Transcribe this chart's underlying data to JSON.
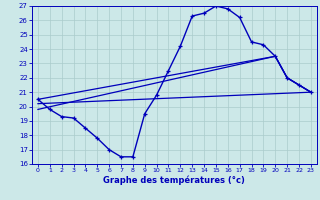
{
  "xlabel": "Graphe des températures (°c)",
  "xlim": [
    -0.5,
    23.5
  ],
  "ylim": [
    16,
    27
  ],
  "yticks": [
    16,
    17,
    18,
    19,
    20,
    21,
    22,
    23,
    24,
    25,
    26,
    27
  ],
  "xticks": [
    0,
    1,
    2,
    3,
    4,
    5,
    6,
    7,
    8,
    9,
    10,
    11,
    12,
    13,
    14,
    15,
    16,
    17,
    18,
    19,
    20,
    21,
    22,
    23
  ],
  "bg_color": "#cce8e8",
  "grid_color": "#aacccc",
  "line_color": "#0000bb",
  "curve": {
    "x": [
      0,
      1,
      2,
      3,
      4,
      5,
      6,
      7,
      8,
      9,
      10,
      11,
      12,
      13,
      14,
      15,
      16,
      17,
      18,
      19,
      20,
      21,
      22,
      23
    ],
    "y": [
      20.5,
      19.8,
      19.3,
      19.2,
      18.5,
      17.8,
      17.0,
      16.5,
      16.5,
      19.5,
      20.8,
      22.5,
      24.2,
      26.3,
      26.5,
      27.0,
      26.8,
      26.2,
      24.5,
      24.3,
      23.5,
      22.0,
      21.5,
      21.0
    ]
  },
  "line_flat": {
    "x": [
      0,
      23
    ],
    "y": [
      20.2,
      21.0
    ]
  },
  "line_rising1": {
    "x": [
      0,
      20,
      21,
      22,
      23
    ],
    "y": [
      19.8,
      23.5,
      22.0,
      21.5,
      21.0
    ]
  },
  "line_rising2": {
    "x": [
      0,
      20,
      21,
      22,
      23
    ],
    "y": [
      20.5,
      23.5,
      22.0,
      21.5,
      21.0
    ]
  }
}
